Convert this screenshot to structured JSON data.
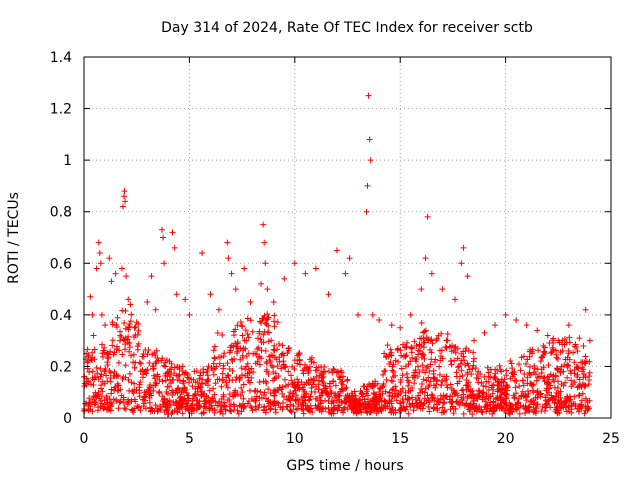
{
  "chart_data": {
    "type": "scatter",
    "title": "Day 314 of 2024, Rate Of TEC Index for receiver sctb",
    "xlabel": "GPS time / hours",
    "ylabel": "ROTI / TECUs",
    "xlim": [
      0,
      25
    ],
    "ylim": [
      0,
      1.4
    ],
    "xticks": [
      0,
      5,
      10,
      15,
      20,
      25
    ],
    "xtick_labels": [
      "0",
      "5",
      "10",
      "15",
      "20",
      "25"
    ],
    "yticks": [
      0,
      0.2,
      0.4,
      0.6,
      0.8,
      1,
      1.2,
      1.4
    ],
    "ytick_labels": [
      "0",
      "0.2",
      "0.4",
      "0.6",
      "0.8",
      "1",
      "1.2",
      "1.4"
    ],
    "grid": true,
    "marker": "+",
    "color": "#ff0000",
    "series": [
      {
        "name": "ROTI",
        "x": [
          0.1,
          0.3,
          0.4,
          0.45,
          0.6,
          0.7,
          0.75,
          0.8,
          0.85,
          1.0,
          1.2,
          1.3,
          1.5,
          1.8,
          1.85,
          1.9,
          1.92,
          1.95,
          2.0,
          2.1,
          2.2,
          2.4,
          3.0,
          3.2,
          3.4,
          3.7,
          3.75,
          3.8,
          4.2,
          4.3,
          4.4,
          4.8,
          5.0,
          5.6,
          6.0,
          6.4,
          6.8,
          6.85,
          7.0,
          7.2,
          7.6,
          7.9,
          8.4,
          8.5,
          8.55,
          8.6,
          8.7,
          9.0,
          9.5,
          10.0,
          10.5,
          11.0,
          11.6,
          12.0,
          12.4,
          12.6,
          13.0,
          13.4,
          13.45,
          13.5,
          13.55,
          13.6,
          13.7,
          14.0,
          14.6,
          15.0,
          15.5,
          16.0,
          16.2,
          16.3,
          16.5,
          17.0,
          17.6,
          17.9,
          18.0,
          18.2,
          18.5,
          19.0,
          19.5,
          20.0,
          20.5,
          21.0,
          21.5,
          22.0,
          22.5,
          23.0,
          23.5,
          23.8,
          24.0
        ],
        "y": [
          0.25,
          0.47,
          0.4,
          0.32,
          0.58,
          0.68,
          0.64,
          0.6,
          0.4,
          0.36,
          0.62,
          0.53,
          0.56,
          0.58,
          0.82,
          0.86,
          0.88,
          0.84,
          0.55,
          0.46,
          0.44,
          0.35,
          0.45,
          0.55,
          0.42,
          0.73,
          0.7,
          0.6,
          0.72,
          0.66,
          0.48,
          0.46,
          0.4,
          0.64,
          0.48,
          0.42,
          0.68,
          0.62,
          0.56,
          0.5,
          0.58,
          0.45,
          0.52,
          0.75,
          0.68,
          0.6,
          0.5,
          0.45,
          0.54,
          0.6,
          0.56,
          0.58,
          0.48,
          0.65,
          0.56,
          0.62,
          0.4,
          0.8,
          0.9,
          1.25,
          1.08,
          1.0,
          0.4,
          0.38,
          0.36,
          0.35,
          0.4,
          0.5,
          0.62,
          0.78,
          0.56,
          0.5,
          0.46,
          0.6,
          0.66,
          0.55,
          0.3,
          0.33,
          0.36,
          0.4,
          0.38,
          0.36,
          0.34,
          0.32,
          0.3,
          0.36,
          0.31,
          0.42,
          0.3
        ],
        "note": "representative sample of the dense point cloud; baseline band 0.02-0.30 TECUs across 0-24 h is rendered as a dense cloud"
      }
    ]
  }
}
